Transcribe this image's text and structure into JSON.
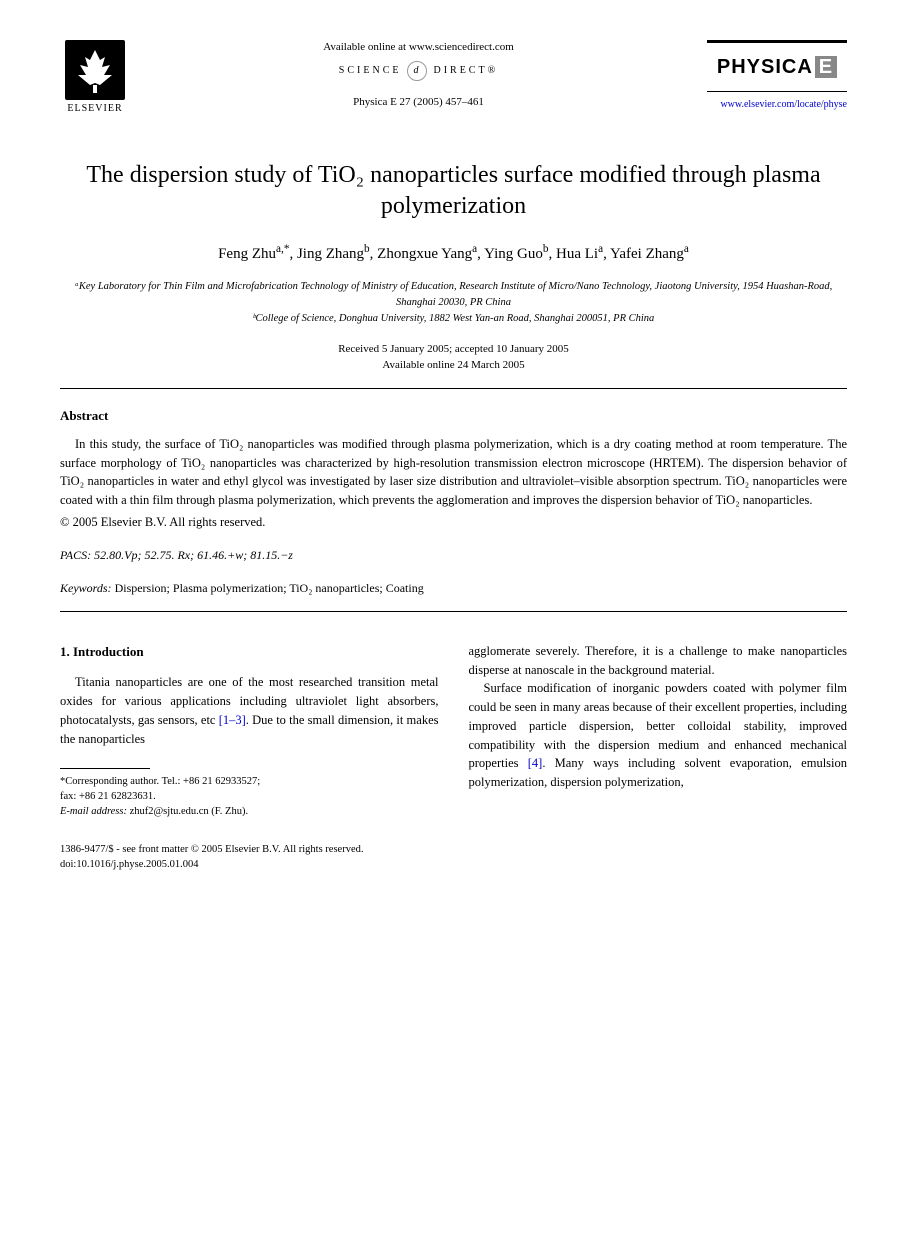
{
  "header": {
    "elsevier": "ELSEVIER",
    "available": "Available online at www.sciencedirect.com",
    "sciencedirect_left": "SCIENCE",
    "sciencedirect_right": "DIRECT®",
    "journal_ref": "Physica E 27 (2005) 457–461",
    "physica": "PHYSICA",
    "physica_e": "E",
    "journal_url": "www.elsevier.com/locate/physe"
  },
  "title": "The dispersion study of TiO₂ nanoparticles surface modified through plasma polymerization",
  "authors_html": "Feng Zhu<sup>a,*</sup>, Jing Zhang<sup>b</sup>, Zhongxue Yang<sup>a</sup>, Ying Guo<sup>b</sup>, Hua Li<sup>a</sup>, Yafei Zhang<sup>a</sup>",
  "affiliations": {
    "a": "ᵃKey Laboratory for Thin Film and Microfabrication Technology of Ministry of Education, Research Institute of Micro/Nano Technology, Jiaotong University, 1954 Huashan-Road, Shanghai 20030, PR China",
    "b": "ᵇCollege of Science, Donghua University, 1882 West Yan-an Road, Shanghai 200051, PR China"
  },
  "dates": {
    "received": "Received 5 January 2005; accepted 10 January 2005",
    "online": "Available online 24 March 2005"
  },
  "abstract": {
    "heading": "Abstract",
    "body": "In this study, the surface of TiO₂ nanoparticles was modified through plasma polymerization, which is a dry coating method at room temperature. The surface morphology of TiO₂ nanoparticles was characterized by high-resolution transmission electron microscope (HRTEM). The dispersion behavior of TiO₂ nanoparticles in water and ethyl glycol was investigated by laser size distribution and ultraviolet–visible absorption spectrum. TiO₂ nanoparticles were coated with a thin film through plasma polymerization, which prevents the agglomeration and improves the dispersion behavior of TiO₂ nanoparticles.",
    "copyright": "© 2005 Elsevier B.V. All rights reserved."
  },
  "pacs": {
    "label": "PACS:",
    "value": "52.80.Vp; 52.75. Rx; 61.46.+w; 81.15.−z"
  },
  "keywords": {
    "label": "Keywords:",
    "value": "Dispersion; Plasma polymerization; TiO₂ nanoparticles; Coating"
  },
  "section1": {
    "heading": "1. Introduction",
    "col1_p1_pre": "Titania nanoparticles are one of the most researched transition metal oxides for various applications including ultraviolet light absorbers, photocatalysts, gas sensors, etc ",
    "col1_ref1": "[1–3]",
    "col1_p1_post": ". Due to the small dimension, it makes the nanoparticles",
    "col2_p1": "agglomerate severely. Therefore, it is a challenge to make nanoparticles disperse at nanoscale in the background material.",
    "col2_p2_pre": "Surface modification of inorganic powders coated with polymer film could be seen in many areas because of their excellent properties, including improved particle dispersion, better colloidal stability, improved compatibility with the dispersion medium and enhanced mechanical properties ",
    "col2_ref2": "[4]",
    "col2_p2_post": ". Many ways including solvent evaporation, emulsion polymerization, dispersion polymerization,"
  },
  "footnote": {
    "corr": "*Corresponding author. Tel.: +86 21 62933527;",
    "fax": "fax: +86 21 62823631.",
    "email_label": "E-mail address:",
    "email": "zhuf2@sjtu.edu.cn (F. Zhu)."
  },
  "footer": {
    "line1": "1386-9477/$ - see front matter © 2005 Elsevier B.V. All rights reserved.",
    "line2": "doi:10.1016/j.physe.2005.01.004"
  },
  "colors": {
    "link": "#0000cc",
    "text": "#000000",
    "bg": "#ffffff"
  }
}
